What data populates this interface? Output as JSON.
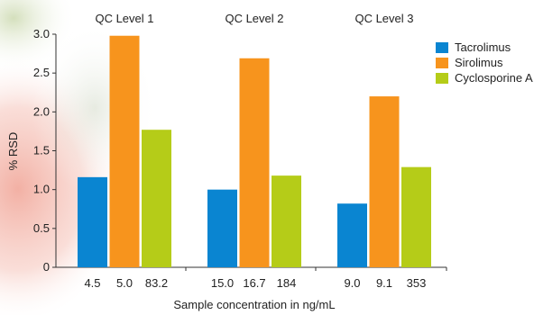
{
  "chart_data": {
    "type": "bar",
    "group_labels": [
      "QC Level 1",
      "QC Level 2",
      "QC Level 3"
    ],
    "series": [
      {
        "name": "Tacrolimus",
        "color": "#0a85d1",
        "values": [
          1.16,
          1.0,
          0.82
        ],
        "concentrations": [
          "4.5",
          "15.0",
          "9.0"
        ]
      },
      {
        "name": "Sirolimus",
        "color": "#f7941d",
        "values": [
          2.98,
          2.69,
          2.2
        ],
        "concentrations": [
          "5.0",
          "16.7",
          "9.1"
        ]
      },
      {
        "name": "Cyclosporine A",
        "color": "#b5cc18",
        "values": [
          1.77,
          1.18,
          1.29
        ],
        "concentrations": [
          "83.2",
          "184",
          "353"
        ]
      }
    ],
    "ylabel": "% RSD",
    "xlabel": "Sample concentration in ng/mL",
    "ylim": [
      0,
      3.0
    ],
    "yticks": [
      "0",
      "0.5",
      "1.0",
      "1.5",
      "2.0",
      "2.5",
      "3.0"
    ],
    "legend_position": "top-right",
    "grid": false
  }
}
